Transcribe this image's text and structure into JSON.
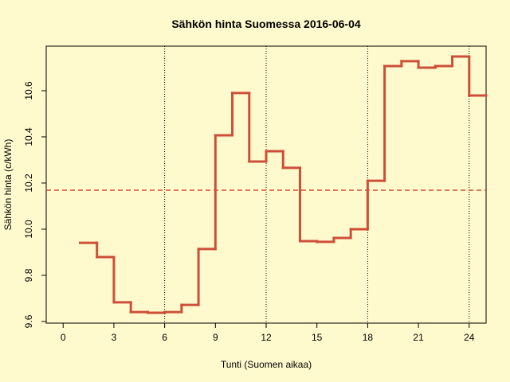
{
  "chart_data": {
    "type": "step",
    "title": "Sähkön hinta Suomessa 2016-06-04",
    "xlabel": "Tunti (Suomen aikaa)",
    "ylabel": "Sähkön hinta (c/kWh)",
    "x": [
      1,
      2,
      3,
      4,
      5,
      6,
      7,
      8,
      9,
      10,
      11,
      12,
      13,
      14,
      15,
      16,
      17,
      18,
      19,
      20,
      21,
      22,
      23,
      24
    ],
    "values": [
      9.941,
      9.879,
      9.683,
      9.641,
      9.638,
      9.641,
      9.672,
      9.914,
      10.407,
      10.59,
      10.293,
      10.338,
      10.266,
      9.948,
      9.945,
      9.962,
      10.0,
      10.21,
      10.707,
      10.728,
      10.7,
      10.707,
      10.748,
      10.579
    ],
    "color": "#cd4f39",
    "xlim": [
      -1,
      25
    ],
    "ylim": [
      9.593,
      10.793
    ],
    "xticks": [
      0,
      3,
      6,
      9,
      12,
      15,
      18,
      21,
      24
    ],
    "yticks": [
      9.6,
      9.8,
      {
        "value": 10,
        "label": "10.0"
      },
      10.2,
      10.4,
      10.6
    ],
    "vlines": [
      6,
      12,
      18,
      24
    ],
    "hline": 10.169
  }
}
